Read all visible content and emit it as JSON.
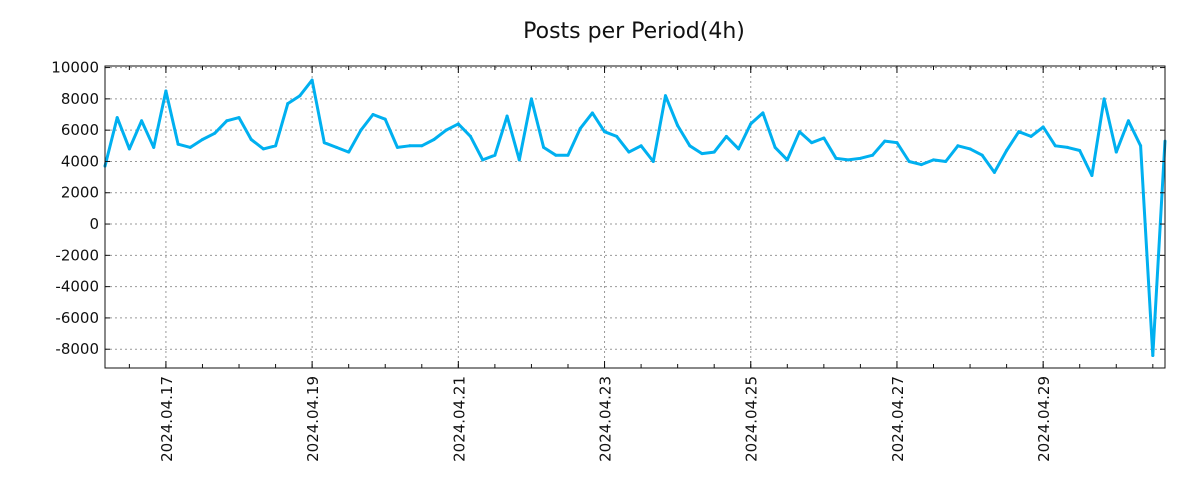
{
  "chart_data": {
    "type": "line",
    "title": "Posts per Period(4h)",
    "xlabel": "",
    "ylabel": "",
    "x_start": "2024-04-16T04:00",
    "interval_hours": 4,
    "series": [
      {
        "name": "posts",
        "color": "#00b0f0",
        "values": [
          3700,
          6800,
          4800,
          6600,
          4900,
          8500,
          5100,
          4900,
          5400,
          5800,
          6600,
          6800,
          5400,
          4800,
          5000,
          7700,
          8200,
          9200,
          5200,
          4900,
          4600,
          6000,
          7000,
          6700,
          4900,
          5000,
          5000,
          5400,
          6000,
          6400,
          5600,
          4100,
          4400,
          6900,
          4100,
          8000,
          4900,
          4400,
          4400,
          6100,
          7100,
          5900,
          5600,
          4600,
          5000,
          4000,
          8200,
          6300,
          5000,
          4500,
          4600,
          5600,
          4800,
          6400,
          7100,
          4900,
          4100,
          5900,
          5200,
          5500,
          4200,
          4100,
          4200,
          4400,
          5300,
          5200,
          4000,
          3800,
          4100,
          4000,
          5000,
          4800,
          4400,
          3300,
          4700,
          5900,
          5600,
          6200,
          5000,
          4900,
          4700,
          3100,
          8000,
          4600,
          6600,
          5000,
          -8400,
          5300
        ]
      }
    ],
    "ylim": [
      -9200,
      10100
    ],
    "yticks": [
      10000,
      8000,
      6000,
      4000,
      2000,
      0,
      -2000,
      -4000,
      -6000,
      -8000
    ],
    "ytick_labels": [
      "10000",
      "8000",
      "6000",
      "4000",
      "2000",
      "0",
      "-2000",
      "-4000",
      "-6000",
      "-8000"
    ],
    "xticks": [
      "2024-04-17T00:00",
      "2024-04-19T00:00",
      "2024-04-21T00:00",
      "2024-04-23T00:00",
      "2024-04-25T00:00",
      "2024-04-27T00:00",
      "2024-04-29T00:00"
    ],
    "xtick_labels": [
      "2024.04.17",
      "2024.04.19",
      "2024.04.21",
      "2024.04.23",
      "2024.04.25",
      "2024.04.27",
      "2024.04.29"
    ],
    "grid": true,
    "legend": "none"
  }
}
